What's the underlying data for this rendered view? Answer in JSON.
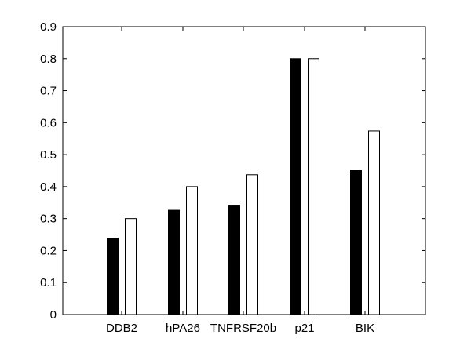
{
  "chart_data": {
    "type": "bar",
    "categories": [
      "DDB2",
      "hPA26",
      "TNFRSF20b",
      "p21",
      "BIK"
    ],
    "series": [
      {
        "values": [
          0.238,
          0.326,
          0.342,
          0.8,
          0.45
        ],
        "color": "#000000"
      },
      {
        "values": [
          0.3,
          0.4,
          0.437,
          0.8,
          0.574
        ],
        "color": "#ffffff"
      }
    ],
    "ylim": [
      0,
      0.9
    ],
    "yticks": [
      0,
      0.1,
      0.2,
      0.3,
      0.4,
      0.5,
      0.6,
      0.7,
      0.8,
      0.9
    ],
    "ytick_labels": [
      "0",
      "0.1",
      "0.2",
      "0.3",
      "0.4",
      "0.5",
      "0.6",
      "0.7",
      "0.8",
      "0.9"
    ],
    "grid": false,
    "legend": "none"
  }
}
